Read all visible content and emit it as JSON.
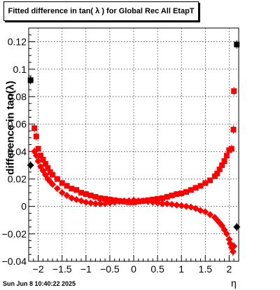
{
  "title": "Fitted difference in tan( λ ) for Global Rec All EtapT",
  "timestamp": "Sun Jun  8 10:40:22 2025",
  "chart_data": {
    "type": "scatter",
    "xlabel": "η",
    "ylabel": "difference in tan(λ)",
    "xlim": [
      -2.2,
      2.2
    ],
    "ylim": [
      -0.04,
      0.13
    ],
    "x_ticks": [
      "−2",
      "−1.5",
      "−1",
      "−0.5",
      "0",
      "0.5",
      "1",
      "1.5",
      "2"
    ],
    "x_tick_values": [
      -2,
      -1.5,
      -1,
      -0.5,
      0,
      0.5,
      1,
      1.5,
      2
    ],
    "y_ticks": [
      "−0.04",
      "−0.02",
      "0",
      "0.02",
      "0.04",
      "0.06",
      "0.08",
      "0.1",
      "0.12"
    ],
    "y_tick_values": [
      -0.04,
      -0.02,
      0,
      0.02,
      0.04,
      0.06,
      0.08,
      0.1,
      0.12
    ],
    "grid": true,
    "series": [
      {
        "marker": "square",
        "color_main": "#ff0000",
        "color_edge": "#000000",
        "points": [
          [
            -2.16,
            0.092
          ],
          [
            -2.08,
            0.057
          ],
          [
            -2.04,
            0.051
          ],
          [
            -2.0,
            0.042
          ],
          [
            -1.95,
            0.037
          ],
          [
            -1.9,
            0.034
          ],
          [
            -1.85,
            0.031
          ],
          [
            -1.8,
            0.028
          ],
          [
            -1.75,
            0.025
          ],
          [
            -1.7,
            0.023
          ],
          [
            -1.6,
            0.02
          ],
          [
            -1.5,
            0.017
          ],
          [
            -1.4,
            0.015
          ],
          [
            -1.3,
            0.013
          ],
          [
            -1.2,
            0.012
          ],
          [
            -1.1,
            0.01
          ],
          [
            -1.0,
            0.009
          ],
          [
            -0.9,
            0.008
          ],
          [
            -0.8,
            0.007
          ],
          [
            -0.7,
            0.006
          ],
          [
            -0.6,
            0.0055
          ],
          [
            -0.5,
            0.005
          ],
          [
            -0.4,
            0.0045
          ],
          [
            -0.3,
            0.004
          ],
          [
            -0.2,
            0.0035
          ],
          [
            -0.1,
            0.003
          ],
          [
            0.0,
            0.003
          ],
          [
            0.1,
            0.0035
          ],
          [
            0.2,
            0.004
          ],
          [
            0.3,
            0.0045
          ],
          [
            0.4,
            0.005
          ],
          [
            0.5,
            0.0055
          ],
          [
            0.6,
            0.006
          ],
          [
            0.7,
            0.007
          ],
          [
            0.8,
            0.008
          ],
          [
            0.9,
            0.009
          ],
          [
            1.0,
            0.0095
          ],
          [
            1.1,
            0.0105
          ],
          [
            1.2,
            0.012
          ],
          [
            1.3,
            0.0135
          ],
          [
            1.4,
            0.015
          ],
          [
            1.5,
            0.017
          ],
          [
            1.6,
            0.019
          ],
          [
            1.7,
            0.022
          ],
          [
            1.75,
            0.024
          ],
          [
            1.8,
            0.027
          ],
          [
            1.85,
            0.03
          ],
          [
            1.9,
            0.033
          ],
          [
            1.95,
            0.037
          ],
          [
            2.0,
            0.041
          ],
          [
            2.05,
            0.042
          ],
          [
            2.09,
            0.056
          ],
          [
            2.1,
            0.084
          ],
          [
            2.16,
            0.118
          ]
        ]
      },
      {
        "marker": "diamond",
        "color_main": "#ff0000",
        "color_edge": "#000000",
        "points": [
          [
            -2.16,
            0.03
          ],
          [
            -2.08,
            0.04
          ],
          [
            -2.04,
            0.037
          ],
          [
            -2.0,
            0.033
          ],
          [
            -1.95,
            0.029
          ],
          [
            -1.9,
            0.026
          ],
          [
            -1.85,
            0.023
          ],
          [
            -1.8,
            0.02
          ],
          [
            -1.75,
            0.018
          ],
          [
            -1.7,
            0.016
          ],
          [
            -1.6,
            0.013
          ],
          [
            -1.5,
            0.01
          ],
          [
            -1.4,
            0.008
          ],
          [
            -1.3,
            0.006
          ],
          [
            -1.2,
            0.005
          ],
          [
            -1.1,
            0.004
          ],
          [
            -1.0,
            0.003
          ],
          [
            -0.9,
            0.0025
          ],
          [
            -0.8,
            0.002
          ],
          [
            -0.7,
            0.002
          ],
          [
            -0.6,
            0.002
          ],
          [
            -0.5,
            0.0025
          ],
          [
            -0.4,
            0.003
          ],
          [
            -0.3,
            0.0035
          ],
          [
            -0.2,
            0.004
          ],
          [
            -0.1,
            0.004
          ],
          [
            0.0,
            0.0045
          ],
          [
            0.1,
            0.004
          ],
          [
            0.2,
            0.004
          ],
          [
            0.3,
            0.0035
          ],
          [
            0.4,
            0.003
          ],
          [
            0.5,
            0.0025
          ],
          [
            0.6,
            0.002
          ],
          [
            0.7,
            0.002
          ],
          [
            0.8,
            0.0015
          ],
          [
            0.9,
            0.001
          ],
          [
            1.0,
            0.0005
          ],
          [
            1.1,
            0.0
          ],
          [
            1.2,
            -0.0005
          ],
          [
            1.3,
            -0.0015
          ],
          [
            1.4,
            -0.003
          ],
          [
            1.5,
            -0.004
          ],
          [
            1.6,
            -0.006
          ],
          [
            1.7,
            -0.008
          ],
          [
            1.75,
            -0.01
          ],
          [
            1.8,
            -0.012
          ],
          [
            1.85,
            -0.014
          ],
          [
            1.9,
            -0.017
          ],
          [
            1.95,
            -0.02
          ],
          [
            2.0,
            -0.024
          ],
          [
            2.02,
            -0.027
          ],
          [
            2.05,
            -0.03
          ],
          [
            2.08,
            -0.033
          ],
          [
            2.1,
            -0.029
          ],
          [
            2.16,
            -0.015
          ]
        ]
      }
    ]
  }
}
